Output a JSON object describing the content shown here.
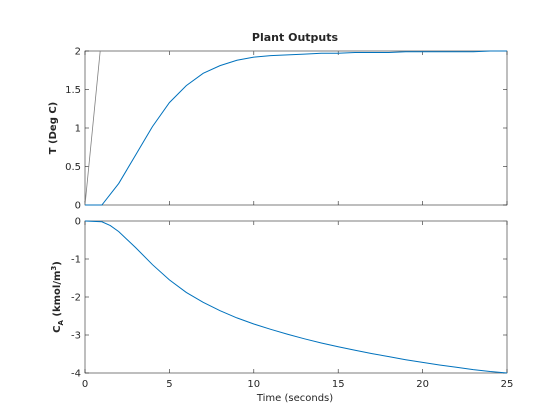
{
  "title": "Plant Outputs",
  "xlabel": "Time (seconds)",
  "colors": {
    "response": "#0072BD",
    "reference": "#7f7f7f",
    "axis": "#262626"
  },
  "chart_data": [
    {
      "type": "line",
      "ylabel": "T (Deg C)",
      "xlim": [
        0,
        25
      ],
      "ylim": [
        0,
        2
      ],
      "xticks": [
        "0",
        "5",
        "10",
        "15",
        "20",
        "25"
      ],
      "yticks": [
        "0",
        "0.5",
        "1",
        "1.5",
        "2"
      ],
      "series": [
        {
          "role": "reference",
          "x": [
            0,
            0.9,
            25
          ],
          "y": [
            0,
            2,
            2
          ]
        },
        {
          "role": "response",
          "x": [
            0,
            1,
            2,
            3,
            4,
            5,
            6,
            7,
            8,
            9,
            10,
            11,
            12,
            13,
            14,
            15,
            16,
            17,
            18,
            19,
            20,
            21,
            22,
            23,
            24,
            25
          ],
          "y": [
            0,
            0,
            0.28,
            0.65,
            1.02,
            1.33,
            1.55,
            1.71,
            1.81,
            1.88,
            1.92,
            1.94,
            1.95,
            1.96,
            1.97,
            1.97,
            1.98,
            1.98,
            1.98,
            1.99,
            1.99,
            1.99,
            1.99,
            1.99,
            2.0,
            2.0
          ]
        }
      ]
    },
    {
      "type": "line",
      "ylabel_main": "C",
      "ylabel_sub": "A",
      "ylabel_rest": " (kmol/m",
      "ylabel_sup": "3",
      "ylabel_close": ")",
      "xlim": [
        0,
        25
      ],
      "ylim": [
        -4,
        0
      ],
      "xticks": [
        "0",
        "5",
        "10",
        "15",
        "20",
        "25"
      ],
      "yticks": [
        "0",
        "-1",
        "-2",
        "-3",
        "-4"
      ],
      "series": [
        {
          "role": "reference",
          "x": [
            0,
            25
          ],
          "y": [
            0,
            0
          ]
        },
        {
          "role": "response",
          "x": [
            0,
            0.5,
            1,
            1.5,
            2,
            3,
            4,
            5,
            6,
            7,
            8,
            9,
            10,
            11,
            12,
            13,
            14,
            15,
            16,
            17,
            18,
            19,
            20,
            21,
            22,
            23,
            24,
            25
          ],
          "y": [
            0,
            -0.01,
            -0.02,
            -0.12,
            -0.28,
            -0.7,
            -1.15,
            -1.55,
            -1.88,
            -2.14,
            -2.36,
            -2.55,
            -2.71,
            -2.85,
            -2.98,
            -3.1,
            -3.21,
            -3.31,
            -3.4,
            -3.49,
            -3.57,
            -3.65,
            -3.72,
            -3.79,
            -3.85,
            -3.91,
            -3.96,
            -4.0
          ]
        }
      ]
    }
  ]
}
